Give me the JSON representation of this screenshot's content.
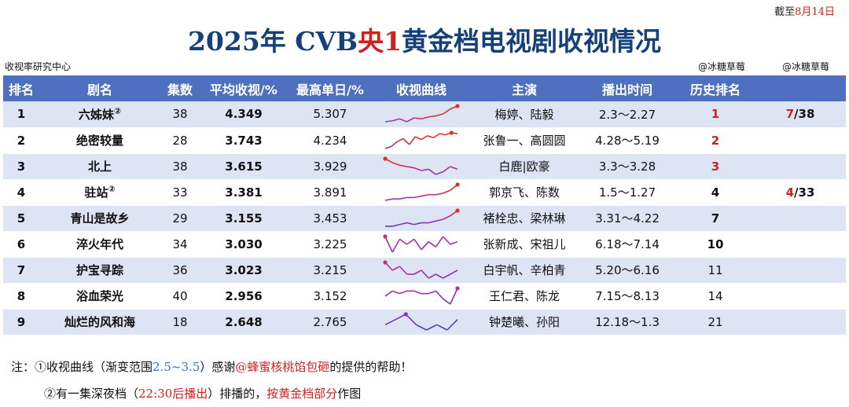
{
  "as_of": {
    "prefix": "截至",
    "date": "8月14日"
  },
  "title": {
    "year": "2025年 CVB",
    "red": "央1",
    "rest": "黄金档电视剧收视情况"
  },
  "source": "收视率研究中心",
  "handles": [
    "@冰糖草莓",
    "@冰糖草莓"
  ],
  "headers": [
    "排名",
    "剧名",
    "集数",
    "平均收视/%",
    "最高单日/%",
    "收视曲线",
    "主演",
    "播出时间",
    "历史排名",
    ""
  ],
  "rows": [
    {
      "rank": "1",
      "name": "六姊妹",
      "mark": "②",
      "eps": "38",
      "avg": "4.349",
      "peak": "5.307",
      "actors": "梅婷、陆毅",
      "period": "2.3～2.27",
      "hist": "1",
      "extra_a": "7",
      "extra_b": "/38",
      "curve": [
        2.9,
        3.0,
        3.2,
        2.9,
        3.3,
        3.2,
        3.4,
        3.5,
        3.7,
        4.2,
        4.5
      ]
    },
    {
      "rank": "2",
      "name": "绝密较量",
      "mark": "",
      "eps": "28",
      "avg": "3.743",
      "peak": "4.234",
      "actors": "张鲁一、高圆圆",
      "period": "4.28～5.19",
      "hist": "2",
      "extra_a": "",
      "extra_b": "",
      "curve": [
        2.6,
        2.8,
        3.3,
        3.6,
        3.0,
        3.8,
        3.5,
        3.9,
        3.7,
        4.1,
        4.0,
        4.2,
        4.1
      ]
    },
    {
      "rank": "3",
      "name": "北上",
      "mark": "",
      "eps": "38",
      "avg": "3.615",
      "peak": "3.929",
      "actors": "白鹿|欧豪",
      "period": "3.3～3.28",
      "hist": "3",
      "extra_a": "",
      "extra_b": "",
      "curve": [
        3.9,
        3.6,
        3.4,
        3.3,
        3.2,
        3.0,
        3.1,
        2.7,
        2.9,
        3.3,
        3.1
      ]
    },
    {
      "rank": "4",
      "name": "驻站",
      "mark": "②",
      "eps": "33",
      "avg": "3.381",
      "peak": "3.891",
      "actors": "郭京飞、陈数",
      "period": "1.5～1.27",
      "hist": "4",
      "extra_a": "4",
      "extra_b": "/33",
      "curve": [
        2.8,
        2.9,
        2.9,
        3.0,
        3.0,
        3.1,
        3.2,
        3.2,
        3.3,
        3.5,
        3.9
      ]
    },
    {
      "rank": "5",
      "name": "青山是故乡",
      "mark": "",
      "eps": "29",
      "avg": "3.155",
      "peak": "3.453",
      "actors": "褚栓忠、梁林琳",
      "period": "3.31～4.22",
      "hist": "7",
      "extra_a": "",
      "extra_b": "",
      "curve": [
        2.6,
        2.6,
        2.7,
        2.8,
        2.7,
        2.8,
        2.8,
        2.9,
        3.0,
        3.2,
        3.5
      ]
    },
    {
      "rank": "6",
      "name": "淬火年代",
      "mark": "",
      "eps": "34",
      "avg": "3.030",
      "peak": "3.225",
      "actors": "张新成、宋祖儿",
      "period": "6.18～7.14",
      "hist": "10",
      "extra_a": "",
      "extra_b": "",
      "curve": [
        3.2,
        2.6,
        3.1,
        2.9,
        3.1,
        2.7,
        3.0,
        2.8,
        3.2,
        2.9,
        3.0
      ]
    },
    {
      "rank": "7",
      "name": "护宝寻踪",
      "mark": "",
      "eps": "36",
      "avg": "3.023",
      "peak": "3.215",
      "actors": "白宇帆、辛柏青",
      "period": "5.20～6.16",
      "hist": "11",
      "extra_a": "",
      "extra_b": "",
      "curve": [
        3.2,
        3.0,
        3.1,
        2.9,
        2.9,
        3.0,
        2.8,
        2.9,
        2.8,
        2.9,
        3.0
      ]
    },
    {
      "rank": "8",
      "name": "浴血荣光",
      "mark": "",
      "eps": "40",
      "avg": "2.956",
      "peak": "3.152",
      "actors": "王仁君、陈龙",
      "period": "7.15～8.13",
      "hist": "14",
      "extra_a": "",
      "extra_b": "",
      "curve": [
        2.8,
        3.0,
        2.9,
        3.0,
        3.0,
        2.9,
        2.9,
        3.0,
        2.7,
        2.5,
        3.1
      ]
    },
    {
      "rank": "9",
      "name": "灿烂的风和海",
      "mark": "",
      "eps": "18",
      "avg": "2.648",
      "peak": "2.765",
      "actors": "钟楚曦、孙阳",
      "period": "12.18～1.3",
      "hist": "21",
      "extra_a": "",
      "extra_b": "",
      "curve": [
        2.6,
        2.7,
        2.8,
        2.6,
        2.5,
        2.6,
        2.5,
        2.7
      ]
    }
  ],
  "notes": {
    "n1": {
      "label": "注：",
      "a": "①收视曲线（渐变范围",
      "range": "2.5~3.5",
      "b": "）感谢",
      "credit": "@蜂蜜核桃馅包砸",
      "c": "的提供的帮助！"
    },
    "n2": {
      "a": "②有一集深夜档（",
      "time": "22:30后播出",
      "b": "）排播的，",
      "red2": "按黄金档部分",
      "c": "作图"
    }
  },
  "curve_colors": {
    "low": "#4a3fc0",
    "mid": "#b22ea8",
    "high": "#d8322a"
  }
}
